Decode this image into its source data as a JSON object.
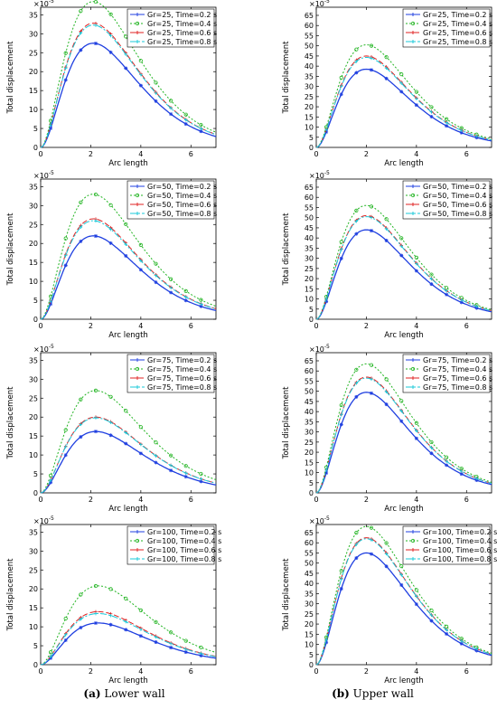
{
  "captions": {
    "a": {
      "label": "(a)",
      "text": " Lower wall"
    },
    "b": {
      "label": "(b)",
      "text": " Upper wall"
    }
  },
  "colors": {
    "t02": "#1f3fe0",
    "t04": "#22b422",
    "t06": "#e02020",
    "t08": "#18c8d8"
  },
  "chart_data": [
    {
      "type": "line",
      "panel": "lower-wall",
      "gr": 25,
      "xlabel": "Arc length",
      "ylabel": "Total displacement",
      "scale_label": "×10",
      "scale_exp": "-5",
      "xlim": [
        0,
        7
      ],
      "ylim": [
        0,
        37
      ],
      "xticks": [
        0,
        2,
        4,
        6
      ],
      "yticks": [
        0,
        5,
        10,
        15,
        20,
        25,
        30,
        35
      ],
      "legend": [
        "Gr=25, Time=0.2 s",
        "Gr=25, Time=0.4 s",
        "Gr=25, Time=0.6 s",
        "Gr=25, Time=0.8 s"
      ],
      "peak_x": 2.1,
      "peaks": [
        27.5,
        38.5,
        32.8,
        32.3
      ]
    },
    {
      "type": "line",
      "panel": "upper-wall",
      "gr": 25,
      "xlabel": "Arc length",
      "ylabel": "Total displacement",
      "scale_label": "×10",
      "scale_exp": "-5",
      "xlim": [
        0,
        7
      ],
      "ylim": [
        0,
        69
      ],
      "xticks": [
        0,
        2,
        4,
        6
      ],
      "yticks": [
        0,
        5,
        10,
        15,
        20,
        25,
        30,
        35,
        40,
        45,
        50,
        55,
        60,
        65
      ],
      "legend": [
        "Gr=25, Time=0.2 s",
        "Gr=25, Time=0.4 s",
        "Gr=25, Time=0.6 s",
        "Gr=25, Time=0.8 s"
      ],
      "peak_x": 2.0,
      "peaks": [
        38.5,
        50.5,
        45,
        44.3
      ]
    },
    {
      "type": "line",
      "panel": "lower-wall",
      "gr": 50,
      "xlabel": "Arc length",
      "ylabel": "Total displacement",
      "scale_label": "×10",
      "scale_exp": "-5",
      "xlim": [
        0,
        7
      ],
      "ylim": [
        0,
        37
      ],
      "xticks": [
        0,
        2,
        4,
        6
      ],
      "yticks": [
        0,
        5,
        10,
        15,
        20,
        25,
        30,
        35
      ],
      "legend": [
        "Gr=50, Time=0.2 s",
        "Gr=50, Time=0.4 s",
        "Gr=50, Time=0.6 s",
        "Gr=50, Time=0.8 s"
      ],
      "peak_x": 2.1,
      "peaks": [
        22,
        33,
        26.5,
        26
      ]
    },
    {
      "type": "line",
      "panel": "upper-wall",
      "gr": 50,
      "xlabel": "Arc length",
      "ylabel": "Total displacement",
      "scale_label": "×10",
      "scale_exp": "-5",
      "xlim": [
        0,
        7
      ],
      "ylim": [
        0,
        69
      ],
      "xticks": [
        0,
        2,
        4,
        6
      ],
      "yticks": [
        0,
        5,
        10,
        15,
        20,
        25,
        30,
        35,
        40,
        45,
        50,
        55,
        60,
        65
      ],
      "legend": [
        "Gr=50, Time=0.2 s",
        "Gr=50, Time=0.4 s",
        "Gr=50, Time=0.6 s",
        "Gr=50, Time=0.8 s"
      ],
      "peak_x": 2.0,
      "peaks": [
        44,
        56,
        51,
        50.5
      ]
    },
    {
      "type": "line",
      "panel": "lower-wall",
      "gr": 75,
      "xlabel": "Arc length",
      "ylabel": "Total displacement",
      "scale_label": "×10",
      "scale_exp": "-5",
      "xlim": [
        0,
        7
      ],
      "ylim": [
        0,
        37
      ],
      "xticks": [
        0,
        2,
        4,
        6
      ],
      "yticks": [
        0,
        5,
        10,
        15,
        20,
        25,
        30,
        35
      ],
      "legend": [
        "Gr=75, Time=0.2 s",
        "Gr=75, Time=0.4 s",
        "Gr=75, Time=0.6 s",
        "Gr=75, Time=0.8 s"
      ],
      "peak_x": 2.2,
      "peaks": [
        16.2,
        27,
        20,
        19.8
      ]
    },
    {
      "type": "line",
      "panel": "upper-wall",
      "gr": 75,
      "xlabel": "Arc length",
      "ylabel": "Total displacement",
      "scale_label": "×10",
      "scale_exp": "-5",
      "xlim": [
        0,
        7
      ],
      "ylim": [
        0,
        69
      ],
      "xticks": [
        0,
        2,
        4,
        6
      ],
      "yticks": [
        0,
        5,
        10,
        15,
        20,
        25,
        30,
        35,
        40,
        45,
        50,
        55,
        60,
        65
      ],
      "legend": [
        "Gr=75, Time=0.2 s",
        "Gr=75, Time=0.4 s",
        "Gr=75, Time=0.6 s",
        "Gr=75, Time=0.8 s"
      ],
      "peak_x": 2.0,
      "peaks": [
        49.5,
        63.5,
        57,
        56.5
      ]
    },
    {
      "type": "line",
      "panel": "lower-wall",
      "gr": 100,
      "xlabel": "Arc length",
      "ylabel": "Total displacement",
      "scale_label": "×10",
      "scale_exp": "-5",
      "xlim": [
        0,
        7
      ],
      "ylim": [
        0,
        37
      ],
      "xticks": [
        0,
        2,
        4,
        6
      ],
      "yticks": [
        0,
        5,
        10,
        15,
        20,
        25,
        30,
        35
      ],
      "legend": [
        "Gr=100, Time=0.2 s",
        "Gr=100, Time=0.4 s",
        "Gr=100, Time=0.6 s",
        "Gr=100, Time=0.8 s"
      ],
      "peak_x": 2.3,
      "peaks": [
        11,
        20.8,
        14,
        13.5
      ]
    },
    {
      "type": "line",
      "panel": "upper-wall",
      "gr": 100,
      "xlabel": "Arc length",
      "ylabel": "Total displacement",
      "scale_label": "×10",
      "scale_exp": "-5",
      "xlim": [
        0,
        7
      ],
      "ylim": [
        0,
        69
      ],
      "xticks": [
        0,
        2,
        4,
        6
      ],
      "yticks": [
        0,
        5,
        10,
        15,
        20,
        25,
        30,
        35,
        40,
        45,
        50,
        55,
        60,
        65
      ],
      "legend": [
        "Gr=100, Time=0.2 s",
        "Gr=100, Time=0.4 s",
        "Gr=100, Time=0.6 s",
        "Gr=100, Time=0.8 s"
      ],
      "peak_x": 2.0,
      "peaks": [
        55,
        68,
        62.5,
        62
      ]
    }
  ]
}
